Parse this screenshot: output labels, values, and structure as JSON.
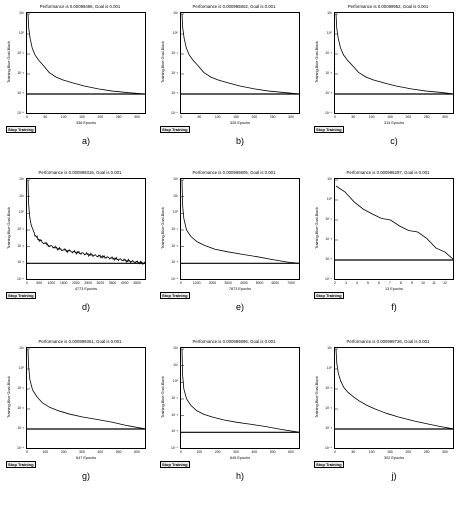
{
  "chart_data": [
    {
      "id": "a",
      "type": "line",
      "title": "Performance is 0.00099496, Goal is 0.001",
      "ylabel": "Training-Blue  Goal-Black",
      "xlabel": "336 Epochs",
      "button": "Stop Training",
      "caption": "a)",
      "xticks": [
        "0",
        "50",
        "100",
        "150",
        "200",
        "250",
        "300"
      ],
      "xlim": [
        0,
        336
      ],
      "yticks": [
        "10^-4",
        "10^-3",
        "10^-2",
        "10^-1",
        "10^0",
        "10^1"
      ],
      "ylim_log10": [
        -4,
        1
      ],
      "goal": 0.001,
      "color": "#000000",
      "x": [
        0,
        2,
        6,
        12,
        20,
        30,
        45,
        60,
        80,
        100,
        130,
        160,
        200,
        240,
        280,
        336
      ],
      "y": [
        10,
        2,
        0.6,
        0.2,
        0.09,
        0.05,
        0.025,
        0.012,
        0.007,
        0.005,
        0.0035,
        0.0025,
        0.0018,
        0.0014,
        0.0012,
        0.00099
      ]
    },
    {
      "id": "b",
      "type": "line",
      "title": "Performance is 0.000995802, Goal is 0.001",
      "ylabel": "Training-Blue  Goal-Black",
      "xlabel": "326 Epochs",
      "button": "Stop Training",
      "caption": "b)",
      "xticks": [
        "0",
        "50",
        "100",
        "150",
        "200",
        "250",
        "300"
      ],
      "xlim": [
        0,
        326
      ],
      "yticks": [
        "10^-4",
        "10^-3",
        "10^-2",
        "10^-1",
        "10^0",
        "10^1"
      ],
      "ylim_log10": [
        -4,
        1
      ],
      "goal": 0.001,
      "color": "#000000",
      "x": [
        0,
        2,
        6,
        12,
        20,
        30,
        45,
        60,
        80,
        100,
        130,
        160,
        200,
        240,
        280,
        326
      ],
      "y": [
        10,
        2,
        0.6,
        0.2,
        0.09,
        0.05,
        0.025,
        0.012,
        0.007,
        0.005,
        0.0035,
        0.0025,
        0.0018,
        0.0014,
        0.0012,
        0.000996
      ]
    },
    {
      "id": "c",
      "type": "line",
      "title": "Performance is 0.00099952, Goal is 0.001",
      "ylabel": "Training-Blue  Goal-Black",
      "xlabel": "314 Epochs",
      "button": "Stop Training",
      "caption": "c)",
      "xticks": [
        "0",
        "50",
        "100",
        "150",
        "200",
        "250",
        "300"
      ],
      "xlim": [
        0,
        314
      ],
      "yticks": [
        "10^-4",
        "10^-3",
        "10^-2",
        "10^-1",
        "10^0",
        "10^1"
      ],
      "ylim_log10": [
        -4,
        1
      ],
      "goal": 0.001,
      "color": "#000000",
      "x": [
        0,
        2,
        6,
        12,
        20,
        30,
        45,
        60,
        80,
        100,
        130,
        160,
        200,
        240,
        280,
        314
      ],
      "y": [
        10,
        2,
        0.6,
        0.2,
        0.09,
        0.05,
        0.025,
        0.012,
        0.007,
        0.005,
        0.0035,
        0.0025,
        0.0018,
        0.0014,
        0.0012,
        0.000999
      ]
    },
    {
      "id": "d",
      "type": "line",
      "title": "Performance is 0.000999316, Goal is 0.001",
      "ylabel": "Training-Blue  Goal-Black",
      "xlabel": "4773 Epochs",
      "button": "Stop Training",
      "caption": "d)",
      "xticks": [
        "0",
        "500",
        "1000",
        "1500",
        "2000",
        "2500",
        "3000",
        "3500",
        "4000",
        "4500"
      ],
      "xlim": [
        0,
        4773
      ],
      "yticks": [
        "10^-4",
        "10^-3",
        "10^-2",
        "10^-1",
        "10^0",
        "10^1",
        "10^2"
      ],
      "ylim_log10": [
        -4,
        2
      ],
      "goal": 0.001,
      "color": "#000000",
      "noisy": true,
      "x": [
        0,
        20,
        60,
        120,
        250,
        400,
        600,
        900,
        1300,
        1800,
        2400,
        3000,
        3600,
        4200,
        4773
      ],
      "y": [
        100,
        5,
        0.8,
        0.2,
        0.06,
        0.03,
        0.018,
        0.011,
        0.007,
        0.005,
        0.0035,
        0.0025,
        0.0018,
        0.0013,
        0.00099
      ]
    },
    {
      "id": "e",
      "type": "line",
      "title": "Performance is 0.000999805, Goal is 0.001",
      "ylabel": "Training-Blue  Goal-Black",
      "xlabel": "7873 Epochs",
      "button": "Stop Training",
      "caption": "e)",
      "xticks": [
        "0",
        "1000",
        "2000",
        "3000",
        "4000",
        "5000",
        "6000",
        "7000"
      ],
      "xlim": [
        0,
        7873
      ],
      "yticks": [
        "10^-4",
        "10^-3",
        "10^-2",
        "10^-1",
        "10^0",
        "10^1",
        "10^2"
      ],
      "ylim_log10": [
        -4,
        2
      ],
      "goal": 0.001,
      "color": "#000000",
      "x": [
        0,
        40,
        120,
        300,
        600,
        1000,
        1500,
        2200,
        3000,
        4000,
        5000,
        6000,
        7000,
        7873
      ],
      "y": [
        100,
        3,
        0.5,
        0.1,
        0.04,
        0.02,
        0.012,
        0.007,
        0.005,
        0.0035,
        0.0025,
        0.0017,
        0.0012,
        0.000999
      ]
    },
    {
      "id": "f",
      "type": "line",
      "title": "Performance is 0.000996297, Goal is 0.001",
      "ylabel": "Training-Blue  Goal-Black",
      "xlabel": "13 Epochs",
      "button": "Stop Training",
      "caption": "f)",
      "xticks": [
        "2",
        "3",
        "4",
        "5",
        "6",
        "7",
        "8",
        "9",
        "10",
        "11",
        "12"
      ],
      "xlim": [
        0,
        13
      ],
      "yticks": [
        "10^-4",
        "10^-3",
        "10^-2",
        "10^-1",
        "10^0",
        "10^1"
      ],
      "ylim_log10": [
        -4,
        1
      ],
      "goal": 0.001,
      "color": "#000000",
      "x": [
        0,
        1,
        2,
        3,
        4,
        5,
        6,
        7,
        8,
        9,
        10,
        11,
        12,
        13
      ],
      "y": [
        5,
        2.5,
        0.8,
        0.35,
        0.2,
        0.12,
        0.1,
        0.05,
        0.03,
        0.025,
        0.012,
        0.004,
        0.0025,
        0.000996
      ]
    },
    {
      "id": "g",
      "type": "line",
      "title": "Performance is 0.000999361, Goal is 0.001",
      "ylabel": "Training-Blue  Goal-Black",
      "xlabel": "647 Epochs",
      "button": "Stop Training",
      "caption": "g)",
      "xticks": [
        "0",
        "100",
        "200",
        "300",
        "400",
        "500",
        "600"
      ],
      "xlim": [
        0,
        647
      ],
      "yticks": [
        "10^-4",
        "10^-3",
        "10^-2",
        "10^-1",
        "10^0",
        "10^1"
      ],
      "ylim_log10": [
        -4,
        1
      ],
      "goal": 0.001,
      "color": "#000000",
      "x": [
        0,
        3,
        10,
        25,
        50,
        80,
        120,
        170,
        230,
        300,
        380,
        460,
        540,
        647
      ],
      "y": [
        10,
        1.5,
        0.3,
        0.09,
        0.04,
        0.02,
        0.012,
        0.008,
        0.0055,
        0.004,
        0.003,
        0.0022,
        0.0015,
        0.000999
      ]
    },
    {
      "id": "h",
      "type": "line",
      "title": "Performance is 0.000999896, Goal is 0.001",
      "ylabel": "Training-Blue  Goal-Black",
      "xlabel": "645 Epochs",
      "button": "Stop Training",
      "caption": "h)",
      "xticks": [
        "0",
        "100",
        "200",
        "300",
        "400",
        "500",
        "600"
      ],
      "xlim": [
        0,
        645
      ],
      "yticks": [
        "10^-4",
        "10^-3",
        "10^-2",
        "10^-1",
        "10^0",
        "10^1",
        "10^2"
      ],
      "ylim_log10": [
        -4,
        2
      ],
      "goal": 0.001,
      "color": "#000000",
      "x": [
        0,
        3,
        10,
        25,
        50,
        80,
        120,
        170,
        230,
        300,
        380,
        460,
        540,
        645
      ],
      "y": [
        100,
        3,
        0.4,
        0.1,
        0.04,
        0.02,
        0.012,
        0.008,
        0.0055,
        0.004,
        0.003,
        0.0022,
        0.0015,
        0.000999
      ]
    },
    {
      "id": "j",
      "type": "line",
      "title": "Performance is 0.000999736, Goal is 0.001",
      "ylabel": "Training-Blue  Goal-Black",
      "xlabel": "302 Epochs",
      "button": "Stop Training",
      "caption": "j)",
      "xticks": [
        "0",
        "50",
        "100",
        "150",
        "200",
        "250",
        "300"
      ],
      "xlim": [
        0,
        302
      ],
      "yticks": [
        "10^-4",
        "10^-3",
        "10^-2",
        "10^-1",
        "10^0",
        "10^1"
      ],
      "ylim_log10": [
        -4,
        1
      ],
      "goal": 0.001,
      "color": "#000000",
      "x": [
        0,
        2,
        6,
        12,
        20,
        30,
        45,
        60,
        80,
        100,
        130,
        160,
        200,
        240,
        270,
        302
      ],
      "y": [
        10,
        2,
        0.6,
        0.25,
        0.12,
        0.07,
        0.04,
        0.025,
        0.015,
        0.01,
        0.006,
        0.004,
        0.0025,
        0.0017,
        0.0013,
        0.000999
      ]
    }
  ]
}
